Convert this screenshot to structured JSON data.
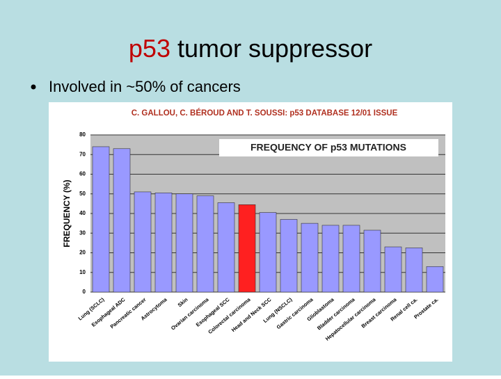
{
  "slide": {
    "title_highlight": "p53",
    "title_rest": "tumor suppressor",
    "bullet": "Involved in ~50% of cancers"
  },
  "chart_data": {
    "type": "bar",
    "source": "C. GALLOU, C. BÉROUD AND T. SOUSSI: p53 DATABASE 12/01 ISSUE",
    "title": "FREQUENCY OF p53 MUTATIONS",
    "y_label": "FREQUENCY (%)",
    "categories": [
      "Lung (SCLC)",
      "Esophageal ADC",
      "Pancreatic cancer",
      "Astrocytoma",
      "Skin",
      "Ovarian carcinoma",
      "Esophageal SCC",
      "Colorectal carcinoma",
      "Head and Neck SCC",
      "Lung (NSCLC)",
      "Gastric carcinoma",
      "Glioblastoma",
      "Bladder carcinoma",
      "Hepatocellular carcinoma",
      "Breast carcinoma",
      "Renal cell ca.",
      "Prostate ca."
    ],
    "values": [
      74,
      73,
      51,
      50.5,
      50,
      49,
      45.5,
      44.5,
      40.5,
      37,
      35,
      34,
      34,
      31.5,
      23,
      22.5,
      13
    ],
    "colors": [
      "#9999ff",
      "#9999ff",
      "#9999ff",
      "#9999ff",
      "#9999ff",
      "#9999ff",
      "#9999ff",
      "#ff2020",
      "#9999ff",
      "#9999ff",
      "#9999ff",
      "#9999ff",
      "#9999ff",
      "#9999ff",
      "#9999ff",
      "#9999ff",
      "#9999ff"
    ],
    "ylim": [
      0,
      80
    ],
    "yticks": [
      0,
      10,
      20,
      30,
      40,
      50,
      60,
      70,
      80
    ],
    "grid": true
  }
}
